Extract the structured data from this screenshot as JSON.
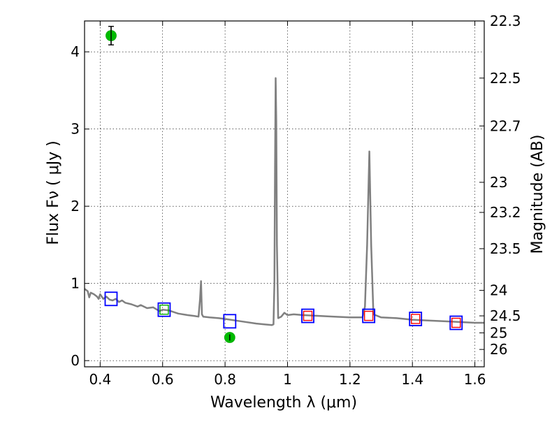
{
  "chart_data": {
    "type": "scatter",
    "xlabel": "Wavelength  λ (μm)",
    "ylabel": "Flux  Fν  ( μJy )",
    "ylabel_right": "Magnitude (AB)",
    "xlim": [
      0.35,
      1.63
    ],
    "ylim": [
      -0.08,
      4.4
    ],
    "grid": true,
    "x_ticks": [
      0.4,
      0.6,
      0.8,
      1.0,
      1.2,
      1.4,
      1.6
    ],
    "x_tick_labels": [
      "0.4",
      "0.6",
      "0.8",
      "1",
      "1.2",
      "1.4",
      "1.6"
    ],
    "y_ticks": [
      0,
      1,
      2,
      3,
      4
    ],
    "y_tick_labels": [
      "0",
      "1",
      "2",
      "3",
      "4"
    ],
    "right_ticks": [
      {
        "label": "22.3",
        "flux": 4.4
      },
      {
        "label": "22.5",
        "flux": 3.66
      },
      {
        "label": "22.7",
        "flux": 3.04
      },
      {
        "label": "23",
        "flux": 2.31
      },
      {
        "label": "23.2",
        "flux": 1.92
      },
      {
        "label": "23.5",
        "flux": 1.45
      },
      {
        "label": "24",
        "flux": 0.91
      },
      {
        "label": "24.5",
        "flux": 0.58
      },
      {
        "label": "25",
        "flux": 0.36
      },
      {
        "label": "26",
        "flux": 0.145
      }
    ],
    "model_spectrum": {
      "color": "#808080",
      "points": [
        [
          0.35,
          0.93
        ],
        [
          0.36,
          0.9
        ],
        [
          0.365,
          0.82
        ],
        [
          0.37,
          0.88
        ],
        [
          0.38,
          0.86
        ],
        [
          0.39,
          0.83
        ],
        [
          0.395,
          0.8
        ],
        [
          0.4,
          0.86
        ],
        [
          0.41,
          0.8
        ],
        [
          0.42,
          0.83
        ],
        [
          0.43,
          0.79
        ],
        [
          0.44,
          0.78
        ],
        [
          0.45,
          0.8
        ],
        [
          0.46,
          0.76
        ],
        [
          0.47,
          0.78
        ],
        [
          0.48,
          0.75
        ],
        [
          0.5,
          0.73
        ],
        [
          0.52,
          0.7
        ],
        [
          0.53,
          0.72
        ],
        [
          0.55,
          0.68
        ],
        [
          0.57,
          0.69
        ],
        [
          0.59,
          0.64
        ],
        [
          0.6,
          0.66
        ],
        [
          0.62,
          0.65
        ],
        [
          0.65,
          0.61
        ],
        [
          0.68,
          0.59
        ],
        [
          0.7,
          0.58
        ],
        [
          0.715,
          0.57
        ],
        [
          0.72,
          0.8
        ],
        [
          0.723,
          1.03
        ],
        [
          0.726,
          0.6
        ],
        [
          0.73,
          0.57
        ],
        [
          0.75,
          0.56
        ],
        [
          0.78,
          0.55
        ],
        [
          0.8,
          0.54
        ],
        [
          0.85,
          0.51
        ],
        [
          0.9,
          0.48
        ],
        [
          0.95,
          0.46
        ],
        [
          0.955,
          0.47
        ],
        [
          0.958,
          1.0
        ],
        [
          0.96,
          2.5
        ],
        [
          0.962,
          3.66
        ],
        [
          0.964,
          3.1
        ],
        [
          0.966,
          1.5
        ],
        [
          0.97,
          0.55
        ],
        [
          0.98,
          0.57
        ],
        [
          0.99,
          0.62
        ],
        [
          1.0,
          0.59
        ],
        [
          1.02,
          0.6
        ],
        [
          1.05,
          0.59
        ],
        [
          1.1,
          0.58
        ],
        [
          1.15,
          0.57
        ],
        [
          1.2,
          0.56
        ],
        [
          1.24,
          0.56
        ],
        [
          1.248,
          0.7
        ],
        [
          1.255,
          1.5
        ],
        [
          1.262,
          2.71
        ],
        [
          1.268,
          1.5
        ],
        [
          1.275,
          0.6
        ],
        [
          1.3,
          0.56
        ],
        [
          1.35,
          0.55
        ],
        [
          1.4,
          0.53
        ],
        [
          1.45,
          0.52
        ],
        [
          1.5,
          0.51
        ],
        [
          1.55,
          0.5
        ],
        [
          1.6,
          0.49
        ],
        [
          1.63,
          0.49
        ]
      ]
    },
    "series": [
      {
        "marker": "open-square",
        "color": "#0000ff",
        "x": [
          0.435,
          0.605,
          0.815,
          1.065,
          1.26,
          1.41,
          1.54
        ],
        "y": [
          0.8,
          0.66,
          0.51,
          0.58,
          0.58,
          0.54,
          0.49
        ]
      },
      {
        "marker": "open-square-small",
        "color": "#ff0000",
        "x": [
          1.065,
          1.26,
          1.41,
          1.54
        ],
        "y": [
          0.58,
          0.58,
          0.54,
          0.49
        ]
      },
      {
        "marker": "open-square-small",
        "color": "#00aa00",
        "x": [
          0.605
        ],
        "y": [
          0.66
        ]
      },
      {
        "marker": "filled-circle",
        "color": "#00bb00",
        "x": [
          0.435,
          0.815
        ],
        "y": [
          4.21,
          0.3
        ],
        "yerr": [
          0.12,
          0.04
        ]
      }
    ]
  }
}
